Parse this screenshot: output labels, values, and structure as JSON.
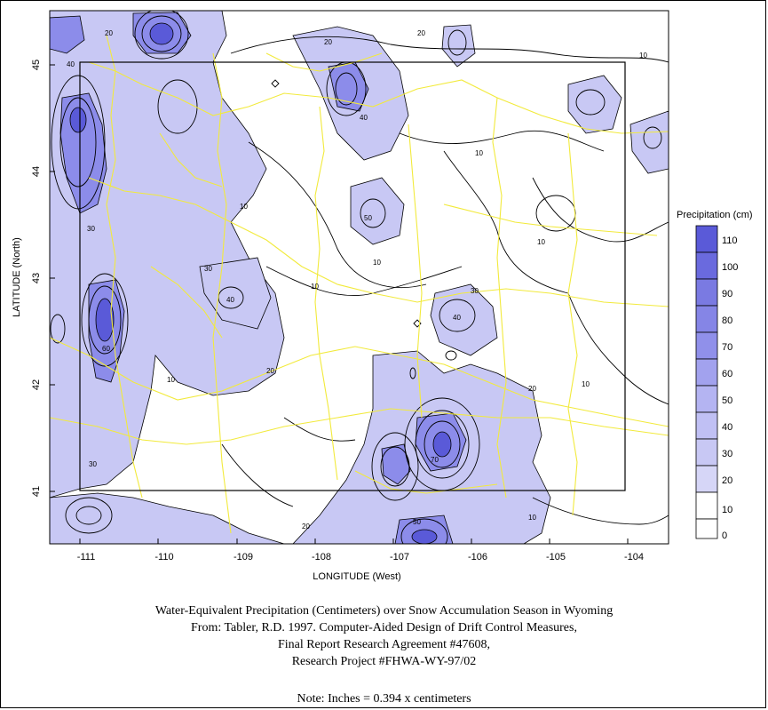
{
  "map": {
    "xlabel": "LONGITUDE (West)",
    "ylabel": "LATITUDE (North)",
    "x_ticks": [
      "-111",
      "-110",
      "-109",
      "-108",
      "-107",
      "-106",
      "-105",
      "-104"
    ],
    "y_ticks": [
      "45",
      "44",
      "43",
      "42",
      "41"
    ],
    "contour_labels": [
      "10",
      "20",
      "30",
      "40",
      "50",
      "60",
      "70"
    ],
    "colors": {
      "fill_low": "#ffffff",
      "fill_mid": "#c8c8f4",
      "fill_high": "#8c8cea",
      "fill_peak": "#5a5ad8",
      "roads": "#f2ea3c",
      "contours": "#000000"
    }
  },
  "legend": {
    "title": "Precipitation (cm)",
    "levels": [
      "110",
      "100",
      "90",
      "80",
      "70",
      "60",
      "50",
      "40",
      "30",
      "20",
      "10",
      "0"
    ]
  },
  "caption": {
    "line1": "Water-Equivalent Precipitation (Centimeters) over Snow Accumulation Season in Wyoming",
    "line2": "From: Tabler, R.D. 1997.  Computer-Aided Design of Drift Control Measures,",
    "line3": "Final Report Research Agreement #47608,",
    "line4": "Research Project #FHWA-WY-97/02",
    "note": "Note: Inches = 0.394 x centimeters"
  }
}
